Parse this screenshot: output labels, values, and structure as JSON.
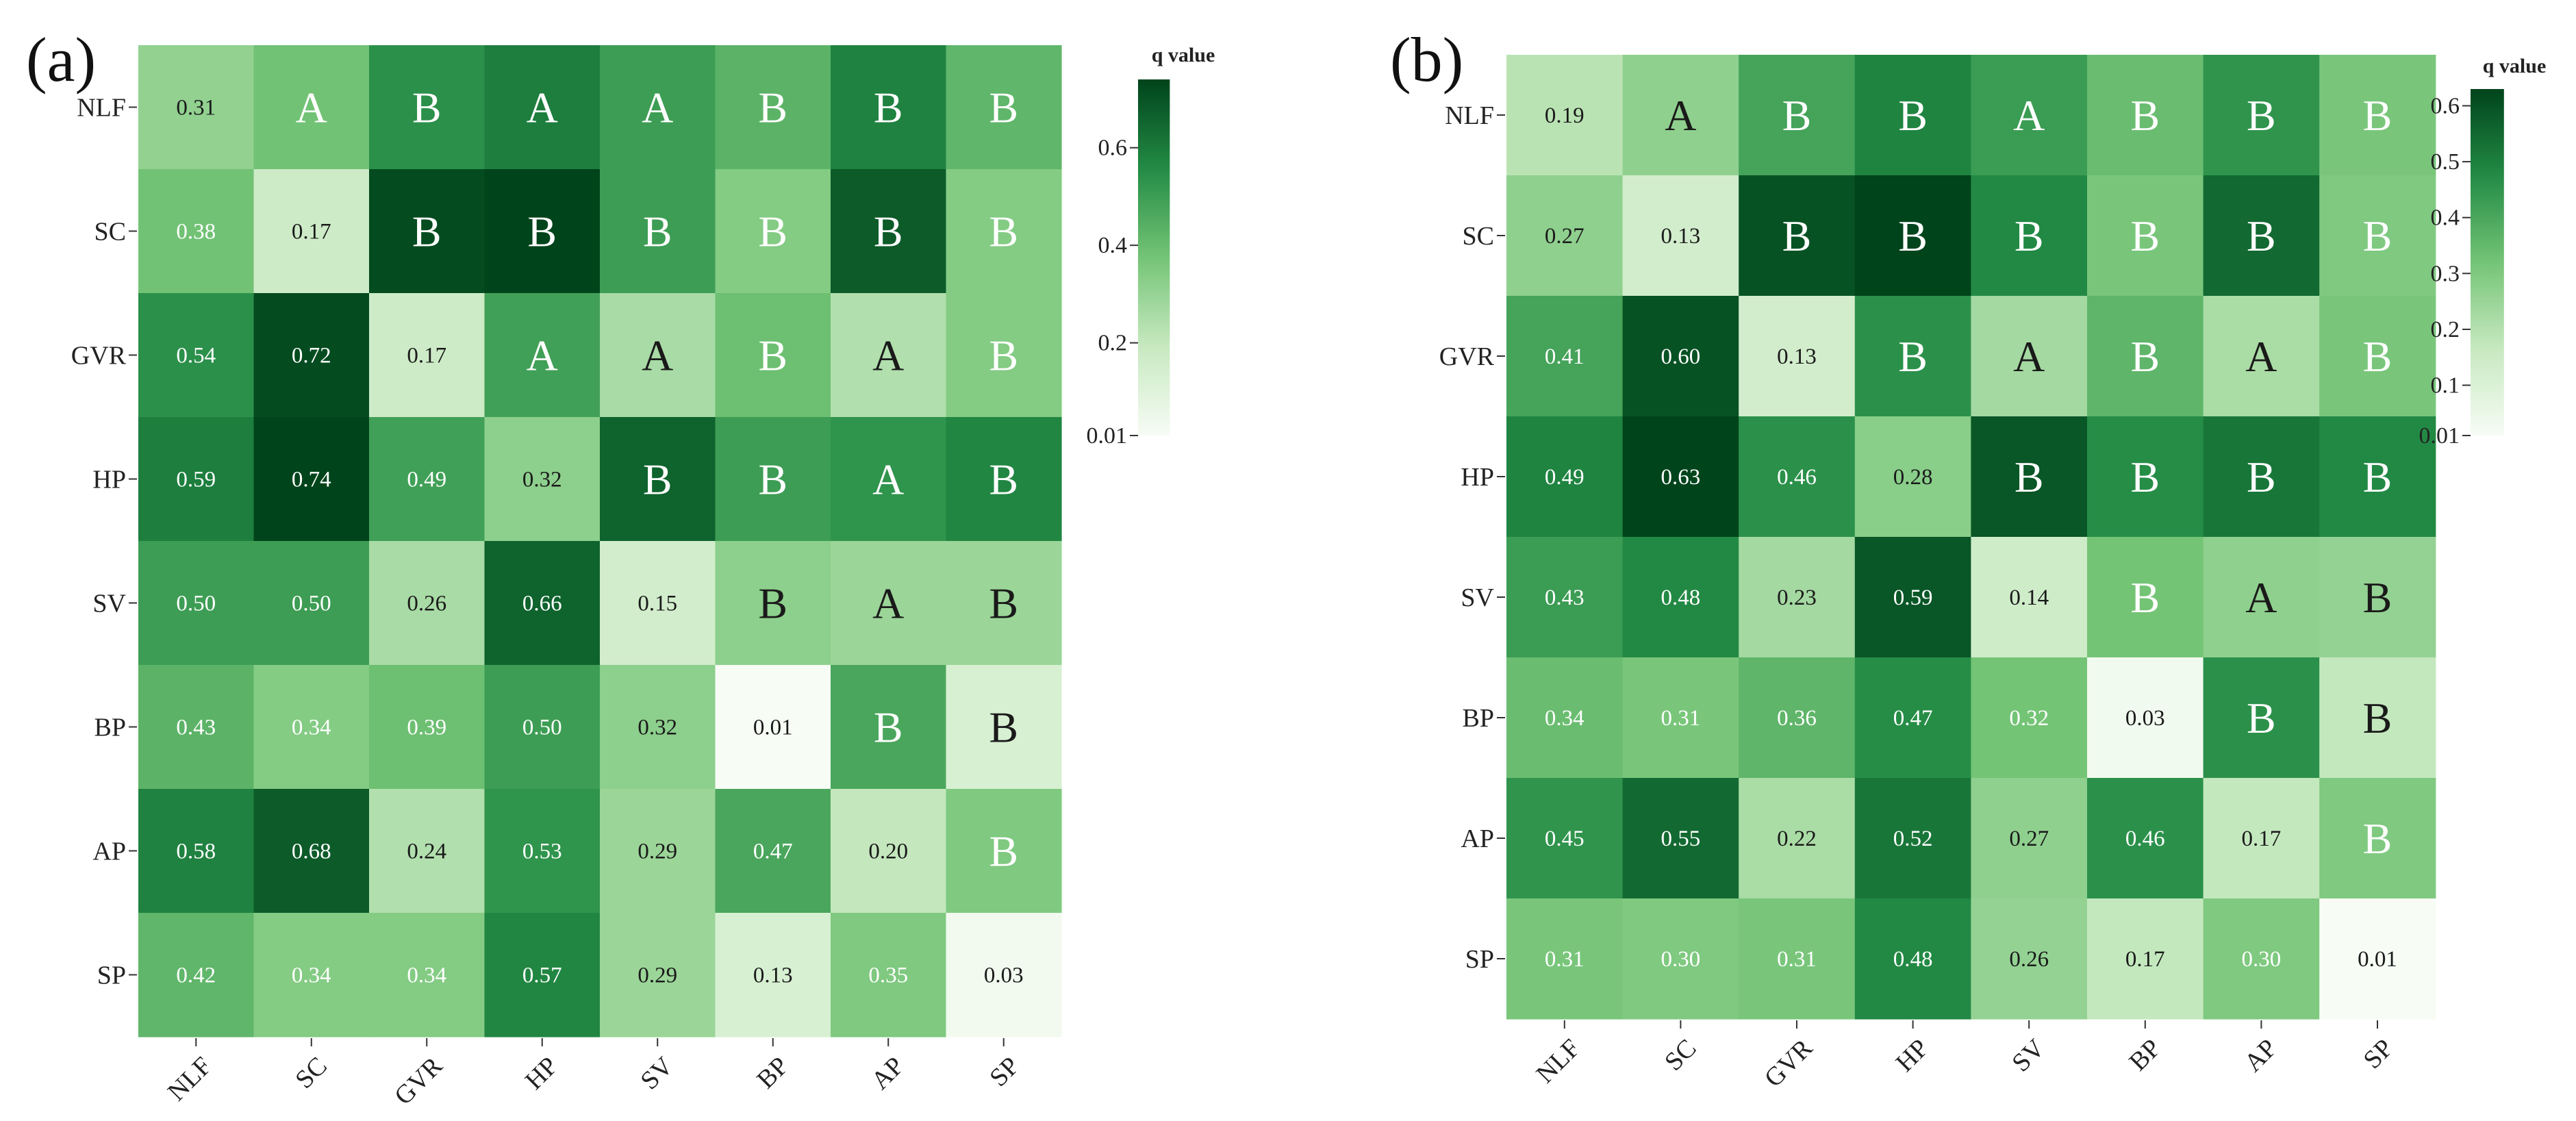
{
  "colors": {
    "low": "#f7fcf5",
    "mid": "#41ab5d",
    "high": "#00441b",
    "dark_text": "#1a1a1a",
    "light_text": "#ffffff"
  },
  "chart_data": [
    {
      "type": "heatmap",
      "panel_label": "(a)",
      "x_labels": [
        "NLF",
        "SC",
        "GVR",
        "HP",
        "SV",
        "BP",
        "AP",
        "SP"
      ],
      "y_labels": [
        "NLF",
        "SC",
        "GVR",
        "HP",
        "SV",
        "BP",
        "AP",
        "SP"
      ],
      "colorbar": {
        "title": "q value",
        "min": 0.01,
        "max": 0.74,
        "ticks": [
          0.01,
          0.2,
          0.4,
          0.6
        ],
        "tick_labels": [
          "0.01",
          "0.2",
          "0.4",
          "0.6"
        ]
      },
      "cells": [
        [
          "0.31",
          "A",
          "B",
          "A",
          "A",
          "B",
          "B",
          "B"
        ],
        [
          "0.38",
          "0.17",
          "B",
          "B",
          "B",
          "B",
          "B",
          "B"
        ],
        [
          "0.54",
          "0.72",
          "0.17",
          "A",
          "A",
          "B",
          "A",
          "B"
        ],
        [
          "0.59",
          "0.74",
          "0.49",
          "0.32",
          "B",
          "B",
          "A",
          "B"
        ],
        [
          "0.50",
          "0.50",
          "0.26",
          "0.66",
          "0.15",
          "B",
          "A",
          "B"
        ],
        [
          "0.43",
          "0.34",
          "0.39",
          "0.50",
          "0.32",
          "0.01",
          "B",
          "B"
        ],
        [
          "0.58",
          "0.68",
          "0.24",
          "0.53",
          "0.29",
          "0.47",
          "0.20",
          "B"
        ],
        [
          "0.42",
          "0.34",
          "0.34",
          "0.57",
          "0.29",
          "0.13",
          "0.35",
          "0.03"
        ]
      ],
      "color_values": [
        [
          0.31,
          0.38,
          0.54,
          0.59,
          0.5,
          0.43,
          0.58,
          0.42
        ],
        [
          0.38,
          0.17,
          0.72,
          0.74,
          0.5,
          0.34,
          0.68,
          0.34
        ],
        [
          0.54,
          0.72,
          0.17,
          0.49,
          0.26,
          0.39,
          0.24,
          0.34
        ],
        [
          0.59,
          0.74,
          0.49,
          0.32,
          0.66,
          0.5,
          0.53,
          0.57
        ],
        [
          0.5,
          0.5,
          0.26,
          0.66,
          0.15,
          0.32,
          0.29,
          0.29
        ],
        [
          0.43,
          0.34,
          0.39,
          0.5,
          0.32,
          0.01,
          0.47,
          0.13
        ],
        [
          0.58,
          0.68,
          0.24,
          0.53,
          0.29,
          0.47,
          0.2,
          0.35
        ],
        [
          0.42,
          0.34,
          0.34,
          0.57,
          0.29,
          0.13,
          0.35,
          0.03
        ]
      ]
    },
    {
      "type": "heatmap",
      "panel_label": "(b)",
      "x_labels": [
        "NLF",
        "SC",
        "GVR",
        "HP",
        "SV",
        "BP",
        "AP",
        "SP"
      ],
      "y_labels": [
        "NLF",
        "SC",
        "GVR",
        "HP",
        "SV",
        "BP",
        "AP",
        "SP"
      ],
      "colorbar": {
        "title": "q value",
        "min": 0.01,
        "max": 0.63,
        "ticks": [
          0.01,
          0.1,
          0.2,
          0.3,
          0.4,
          0.5,
          0.6
        ],
        "tick_labels": [
          "0.01",
          "0.1",
          "0.2",
          "0.3",
          "0.4",
          "0.5",
          "0.6"
        ]
      },
      "cells": [
        [
          "0.19",
          "A",
          "B",
          "B",
          "A",
          "B",
          "B",
          "B"
        ],
        [
          "0.27",
          "0.13",
          "B",
          "B",
          "B",
          "B",
          "B",
          "B"
        ],
        [
          "0.41",
          "0.60",
          "0.13",
          "B",
          "A",
          "B",
          "A",
          "B"
        ],
        [
          "0.49",
          "0.63",
          "0.46",
          "0.28",
          "B",
          "B",
          "B",
          "B"
        ],
        [
          "0.43",
          "0.48",
          "0.23",
          "0.59",
          "0.14",
          "B",
          "A",
          "B"
        ],
        [
          "0.34",
          "0.31",
          "0.36",
          "0.47",
          "0.32",
          "0.03",
          "B",
          "B"
        ],
        [
          "0.45",
          "0.55",
          "0.22",
          "0.52",
          "0.27",
          "0.46",
          "0.17",
          "B"
        ],
        [
          "0.31",
          "0.30",
          "0.31",
          "0.48",
          "0.26",
          "0.17",
          "0.30",
          "0.01"
        ]
      ],
      "color_values": [
        [
          0.19,
          0.27,
          0.41,
          0.49,
          0.43,
          0.34,
          0.45,
          0.31
        ],
        [
          0.27,
          0.13,
          0.6,
          0.63,
          0.48,
          0.31,
          0.55,
          0.3
        ],
        [
          0.41,
          0.6,
          0.13,
          0.46,
          0.23,
          0.36,
          0.22,
          0.31
        ],
        [
          0.49,
          0.63,
          0.46,
          0.28,
          0.59,
          0.47,
          0.52,
          0.48
        ],
        [
          0.43,
          0.48,
          0.23,
          0.59,
          0.14,
          0.32,
          0.27,
          0.26
        ],
        [
          0.34,
          0.31,
          0.36,
          0.47,
          0.32,
          0.03,
          0.46,
          0.17
        ],
        [
          0.45,
          0.55,
          0.22,
          0.52,
          0.27,
          0.46,
          0.17,
          0.3
        ],
        [
          0.31,
          0.3,
          0.31,
          0.48,
          0.26,
          0.17,
          0.3,
          0.01
        ]
      ]
    }
  ]
}
